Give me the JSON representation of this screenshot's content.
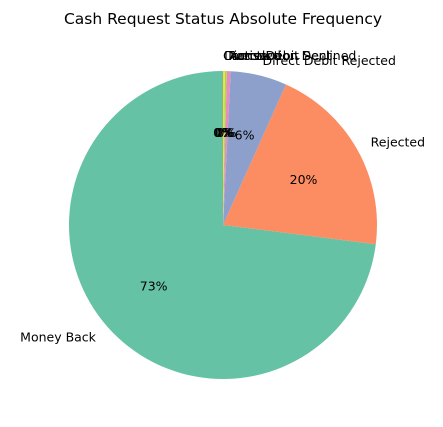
{
  "chart_data": {
    "type": "pie",
    "title": "Cash Request Status Absolute Frequency",
    "start_angle_deg": 90,
    "counterclock": true,
    "autopct": "%1.0f%%",
    "legend": "none",
    "slices": [
      {
        "label": "Money Back",
        "value": 73.0,
        "pct_text": "73%",
        "color": "#66c2a5"
      },
      {
        "label": "Rejected",
        "value": 20.3,
        "pct_text": "20%",
        "color": "#fc8d62"
      },
      {
        "label": "Direct Debit Rejected",
        "value": 5.9,
        "pct_text": "6%",
        "color": "#8da0cb"
      },
      {
        "label": "Active",
        "value": 0.4,
        "pct_text": "0%",
        "color": "#e78ac3"
      },
      {
        "label": "Transaction Declined",
        "value": 0.2,
        "pct_text": "0%",
        "color": "#a6d854"
      },
      {
        "label": "Direct Debit Sent",
        "value": 0.2,
        "pct_text": "0%",
        "color": "#ffd92f"
      },
      {
        "label": "Canceled",
        "value": 0.0,
        "pct_text": "0%",
        "color": "#e5c494"
      }
    ]
  }
}
